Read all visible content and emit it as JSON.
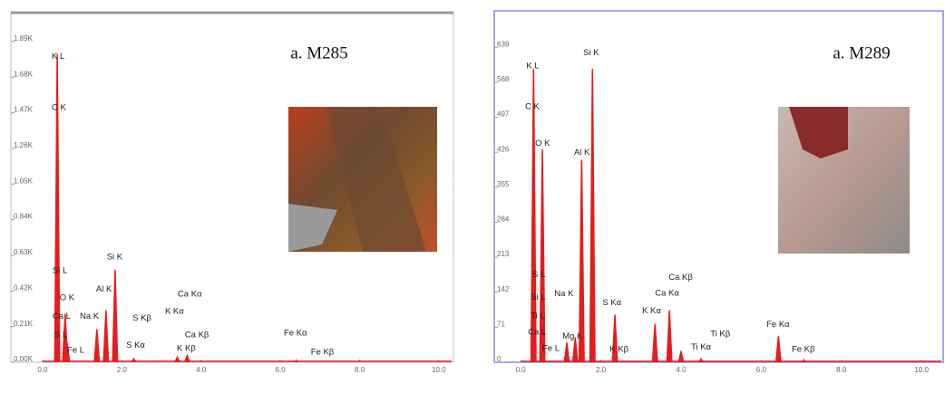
{
  "chart_data": [
    {
      "type": "spectrum",
      "title": "a. M285",
      "color": "#e41e1e",
      "xlim": [
        -0.8,
        10.37
      ],
      "ylim": [
        0,
        2.06
      ],
      "xticks": [
        {
          "value": 0,
          "label": "0.0"
        },
        {
          "value": 2,
          "label": "2.0"
        },
        {
          "value": 4,
          "label": "4.0"
        },
        {
          "value": 6,
          "label": "6.0"
        },
        {
          "value": 8,
          "label": "8.0"
        },
        {
          "value": 10,
          "label": "10.0"
        }
      ],
      "yticks": [
        {
          "value": 0,
          "label": "0.00K"
        },
        {
          "value": 0.21,
          "label": "0.21K"
        },
        {
          "value": 0.42,
          "label": "0.42K"
        },
        {
          "value": 0.63,
          "label": "0.63K"
        },
        {
          "value": 0.84,
          "label": "0.84K"
        },
        {
          "value": 1.05,
          "label": "1.05K"
        },
        {
          "value": 1.26,
          "label": "1.26K"
        },
        {
          "value": 1.47,
          "label": "1.47K"
        },
        {
          "value": 1.68,
          "label": "1.68K"
        },
        {
          "value": 1.89,
          "label": "1.89K"
        }
      ],
      "x": [
        0.37,
        0.57,
        0.62,
        1.37,
        1.6,
        1.83,
        2.3,
        3.4,
        3.65,
        6.4
      ],
      "values": [
        1.82,
        0.29,
        0.12,
        0.2,
        0.31,
        0.55,
        0.03,
        0.04,
        0.05,
        0.02
      ],
      "annotations": [
        {
          "text": "K L",
          "x": 0.23,
          "y": 1.8
        },
        {
          "text": "C K",
          "x": 0.23,
          "y": 1.5
        },
        {
          "text": "Si L",
          "x": 0.25,
          "y": 0.54
        },
        {
          "text": "O K",
          "x": 0.43,
          "y": 0.38
        },
        {
          "text": "Ca L",
          "x": 0.25,
          "y": 0.27
        },
        {
          "text": "Na K",
          "x": 0.94,
          "y": 0.27
        },
        {
          "text": "Al K",
          "x": 1.35,
          "y": 0.43
        },
        {
          "text": "Si K",
          "x": 1.62,
          "y": 0.62
        },
        {
          "text": "S Kβ",
          "x": 2.27,
          "y": 0.26
        },
        {
          "text": "K Kα",
          "x": 3.09,
          "y": 0.3
        },
        {
          "text": "Ca Kα",
          "x": 3.41,
          "y": 0.4
        },
        {
          "text": "S L",
          "x": 0.3,
          "y": 0.16
        },
        {
          "text": "Fe L",
          "x": 0.62,
          "y": 0.07
        },
        {
          "text": "S Kα",
          "x": 2.11,
          "y": 0.1
        },
        {
          "text": "Ca Kβ",
          "x": 3.59,
          "y": 0.16
        },
        {
          "text": "K Kβ",
          "x": 3.39,
          "y": 0.08
        },
        {
          "text": "Fe Kα",
          "x": 6.09,
          "y": 0.17
        },
        {
          "text": "Fe Kβ",
          "x": 6.77,
          "y": 0.06
        }
      ]
    },
    {
      "type": "spectrum",
      "title": "a. M289",
      "color": "#e41e1e",
      "xlim": [
        -0.66,
        10.54
      ],
      "ylim": [
        0,
        713
      ],
      "xticks": [
        {
          "value": 0,
          "label": "0.0"
        },
        {
          "value": 2,
          "label": "2.0"
        },
        {
          "value": 4,
          "label": "4.0"
        },
        {
          "value": 6,
          "label": "6.0"
        },
        {
          "value": 8,
          "label": "8.0"
        },
        {
          "value": 10,
          "label": "10.0"
        }
      ],
      "yticks": [
        0,
        71,
        142,
        213,
        284,
        355,
        426,
        497,
        568,
        639
      ],
      "x": [
        0.32,
        0.54,
        1.15,
        1.36,
        1.52,
        1.79,
        2.35,
        3.35,
        3.71,
        4.0,
        4.5,
        6.43,
        7.06
      ],
      "values": [
        597,
        434,
        42,
        52,
        412,
        597,
        98,
        80,
        107,
        25,
        10,
        55,
        8
      ],
      "annotations": [
        {
          "text": "K L",
          "x": 0.14,
          "y": 601
        },
        {
          "text": "C K",
          "x": 0.11,
          "y": 518
        },
        {
          "text": "O K",
          "x": 0.36,
          "y": 444
        },
        {
          "text": "Al K",
          "x": 1.33,
          "y": 425
        },
        {
          "text": "Si K",
          "x": 1.56,
          "y": 628
        },
        {
          "text": "S L",
          "x": 0.29,
          "y": 177
        },
        {
          "text": "Si L",
          "x": 0.25,
          "y": 131
        },
        {
          "text": "Na K",
          "x": 0.84,
          "y": 139
        },
        {
          "text": "Ti L",
          "x": 0.25,
          "y": 94
        },
        {
          "text": "Ca L",
          "x": 0.18,
          "y": 61
        },
        {
          "text": "Mg K",
          "x": 1.04,
          "y": 52
        },
        {
          "text": "Fe L",
          "x": 0.54,
          "y": 28
        },
        {
          "text": "S Kα",
          "x": 2.04,
          "y": 120
        },
        {
          "text": "K Kα",
          "x": 3.03,
          "y": 104
        },
        {
          "text": "Ca Kα",
          "x": 3.35,
          "y": 140
        },
        {
          "text": "Ca Kβ",
          "x": 3.69,
          "y": 172
        },
        {
          "text": "Ti Kβ",
          "x": 4.73,
          "y": 57
        },
        {
          "text": "Ti Kα",
          "x": 4.25,
          "y": 30
        },
        {
          "text": "K Kβ",
          "x": 2.22,
          "y": 26
        },
        {
          "text": "Fe Kα",
          "x": 6.13,
          "y": 76
        },
        {
          "text": "Fe Kβ",
          "x": 6.76,
          "y": 26
        }
      ]
    }
  ]
}
